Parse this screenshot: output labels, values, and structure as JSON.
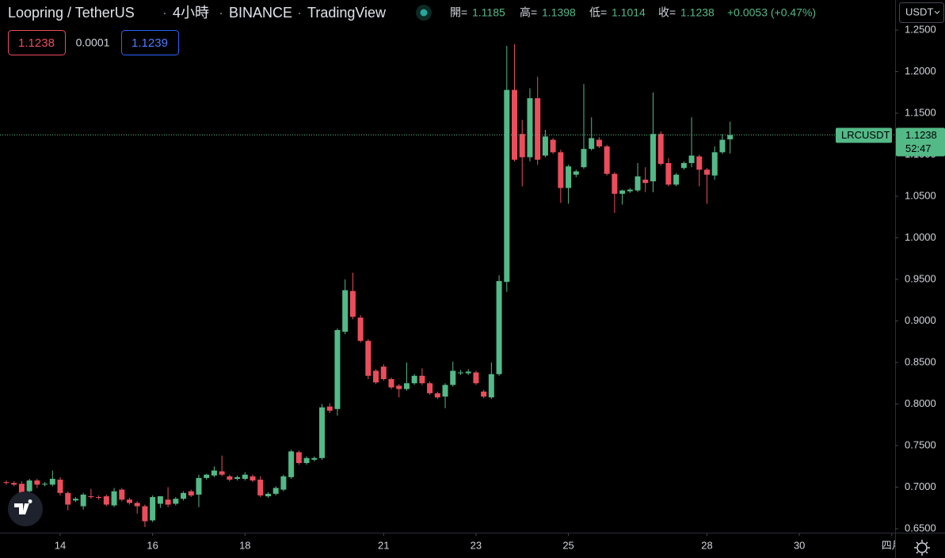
{
  "header": {
    "symbol": "Loopring / TetherUS",
    "interval": "4小時",
    "exchange": "BINANCE",
    "source": "TradingView",
    "open_label": "開=",
    "open": "1.1185",
    "high_label": "高=",
    "high": "1.1398",
    "low_label": "低=",
    "low": "1.1014",
    "close_label": "收=",
    "close": "1.1238",
    "change": "+0.0053 (+0.47%)",
    "currency": "USDT"
  },
  "order_boxes": {
    "sell": "1.1238",
    "spread": "0.0001",
    "buy": "1.1239"
  },
  "chart_data": {
    "type": "candlestick",
    "open": [
      0.706,
      0.705,
      0.704,
      0.695,
      0.708,
      0.703,
      0.703,
      0.709,
      0.693,
      0.684,
      0.677,
      0.689,
      0.688,
      0.689,
      0.678,
      0.697,
      0.685,
      0.681,
      0.677,
      0.66,
      0.68,
      0.685,
      0.68,
      0.686,
      0.695,
      0.691,
      0.711,
      0.714,
      0.719,
      0.713,
      0.71,
      0.71,
      0.713,
      0.709,
      0.689,
      0.692,
      0.697,
      0.712,
      0.742,
      0.729,
      0.733,
      0.735,
      0.797,
      0.794,
      0.887,
      0.936,
      0.904,
      0.876,
      0.84,
      0.845,
      0.83,
      0.822,
      0.818,
      0.825,
      0.834,
      0.825,
      0.813,
      0.809,
      0.823,
      0.837,
      0.837,
      0.838,
      0.815,
      0.808,
      0.836,
      0.947,
      1.178,
      1.125,
      1.097,
      1.168,
      1.099,
      1.118,
      1.103,
      1.06,
      1.076,
      1.085,
      1.107,
      1.118,
      1.11,
      1.077,
      1.053,
      1.056,
      1.057,
      1.07,
      1.068,
      1.125,
      1.09,
      1.064,
      1.084,
      1.09,
      1.098,
      1.082,
      1.075,
      1.103,
      1.1185
    ],
    "high": [
      0.708,
      0.707,
      0.707,
      0.71,
      0.71,
      0.706,
      0.72,
      0.712,
      0.695,
      0.688,
      0.693,
      0.698,
      0.69,
      0.691,
      0.699,
      0.699,
      0.687,
      0.683,
      0.679,
      0.69,
      0.689,
      0.7,
      0.688,
      0.695,
      0.697,
      0.715,
      0.716,
      0.725,
      0.738,
      0.715,
      0.714,
      0.718,
      0.715,
      0.713,
      0.694,
      0.701,
      0.715,
      0.745,
      0.744,
      0.737,
      0.737,
      0.8,
      0.801,
      0.891,
      0.95,
      0.958,
      0.907,
      0.878,
      0.842,
      0.848,
      0.832,
      0.824,
      0.85,
      0.836,
      0.843,
      0.827,
      0.815,
      0.825,
      0.851,
      0.841,
      0.842,
      0.84,
      0.817,
      0.85,
      0.955,
      1.231,
      1.233,
      1.142,
      1.18,
      1.194,
      1.13,
      1.12,
      1.106,
      1.088,
      1.082,
      1.185,
      1.145,
      1.121,
      1.112,
      1.079,
      1.058,
      1.06,
      1.09,
      1.085,
      1.175,
      1.128,
      1.096,
      1.078,
      1.092,
      1.145,
      1.1,
      1.084,
      1.11,
      1.125,
      1.1398
    ],
    "low": [
      0.703,
      0.701,
      0.688,
      0.69,
      0.699,
      0.701,
      0.701,
      0.69,
      0.672,
      0.682,
      0.673,
      0.686,
      0.685,
      0.677,
      0.676,
      0.683,
      0.679,
      0.668,
      0.652,
      0.658,
      0.675,
      0.676,
      0.678,
      0.684,
      0.688,
      0.676,
      0.709,
      0.712,
      0.713,
      0.707,
      0.708,
      0.708,
      0.706,
      0.688,
      0.687,
      0.69,
      0.695,
      0.71,
      0.727,
      0.727,
      0.731,
      0.733,
      0.789,
      0.786,
      0.884,
      0.902,
      0.874,
      0.83,
      0.824,
      0.828,
      0.818,
      0.808,
      0.816,
      0.823,
      0.823,
      0.811,
      0.806,
      0.795,
      0.821,
      0.835,
      0.835,
      0.823,
      0.807,
      0.806,
      0.834,
      0.935,
      1.092,
      1.062,
      1.092,
      1.088,
      1.097,
      1.101,
      1.042,
      1.041,
      1.073,
      1.083,
      1.105,
      1.108,
      1.075,
      1.03,
      1.04,
      1.054,
      1.055,
      1.055,
      1.055,
      1.087,
      1.062,
      1.062,
      1.082,
      1.085,
      1.062,
      1.041,
      1.07,
      1.101,
      1.1014
    ],
    "close": [
      0.705,
      0.703,
      0.692,
      0.708,
      0.703,
      0.704,
      0.71,
      0.693,
      0.679,
      0.686,
      0.691,
      0.688,
      0.687,
      0.679,
      0.695,
      0.685,
      0.681,
      0.677,
      0.659,
      0.688,
      0.689,
      0.679,
      0.686,
      0.693,
      0.69,
      0.711,
      0.715,
      0.72,
      0.715,
      0.709,
      0.712,
      0.715,
      0.708,
      0.69,
      0.692,
      0.699,
      0.713,
      0.743,
      0.729,
      0.735,
      0.735,
      0.796,
      0.792,
      0.889,
      0.937,
      0.905,
      0.876,
      0.834,
      0.826,
      0.83,
      0.82,
      0.818,
      0.825,
      0.834,
      0.825,
      0.813,
      0.808,
      0.823,
      0.84,
      0.838,
      0.839,
      0.825,
      0.809,
      0.836,
      0.948,
      1.178,
      1.094,
      1.097,
      1.168,
      1.094,
      1.122,
      1.103,
      1.06,
      1.086,
      1.08,
      1.107,
      1.12,
      1.11,
      1.077,
      1.053,
      1.057,
      1.058,
      1.074,
      1.066,
      1.125,
      1.089,
      1.064,
      1.076,
      1.09,
      1.099,
      1.082,
      1.076,
      1.103,
      1.118,
      1.1238
    ],
    "up_color": "#53b987",
    "down_color": "#eb4d5c",
    "xlim": [
      -0.82,
      115.43
    ],
    "xticks": [
      {
        "value": 7,
        "label": "14"
      },
      {
        "value": 19,
        "label": "16"
      },
      {
        "value": 31,
        "label": "18"
      },
      {
        "value": 49,
        "label": "21"
      },
      {
        "value": 61,
        "label": "23"
      },
      {
        "value": 73,
        "label": "25"
      },
      {
        "value": 91,
        "label": "28"
      },
      {
        "value": 103,
        "label": "30"
      },
      {
        "value": 115,
        "label": "四月"
      }
    ],
    "ylim": [
      0.6452,
      1.2862
    ],
    "yticks": [
      {
        "value": 0.65,
        "label": "0.6500"
      },
      {
        "value": 0.7,
        "label": "0.7000"
      },
      {
        "value": 0.75,
        "label": "0.7500"
      },
      {
        "value": 0.8,
        "label": "0.8000"
      },
      {
        "value": 0.85,
        "label": "0.8500"
      },
      {
        "value": 0.9,
        "label": "0.9000"
      },
      {
        "value": 0.95,
        "label": "0.9500"
      },
      {
        "value": 1.0,
        "label": "1.0000"
      },
      {
        "value": 1.05,
        "label": "1.0500"
      },
      {
        "value": 1.1,
        "label": "1.1000"
      },
      {
        "value": 1.15,
        "label": "1.1500"
      },
      {
        "value": 1.2,
        "label": "1.2000"
      },
      {
        "value": 1.25,
        "label": "1.2500"
      }
    ],
    "last_price": {
      "symbol": "LRCUSDT",
      "value": 1.1238,
      "label": "1.1238",
      "countdown": "52:47"
    }
  }
}
